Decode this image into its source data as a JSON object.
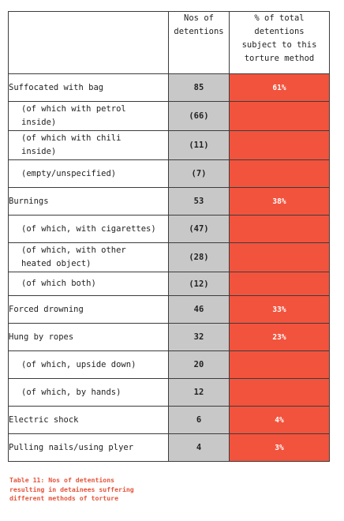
{
  "table": {
    "headers": {
      "method": "",
      "count": [
        "Nos of",
        "detentions"
      ],
      "percent": [
        "% of total",
        "detentions",
        "subject to this",
        "torture method"
      ]
    },
    "rows": [
      {
        "method": [
          "Suffocated with bag"
        ],
        "count": "85",
        "percent": "61%",
        "sub": false
      },
      {
        "method": [
          "(of which with petrol",
          "inside)"
        ],
        "count": "(66)",
        "percent": "",
        "sub": true
      },
      {
        "method": [
          "(of which with chili",
          "inside)"
        ],
        "count": "(11)",
        "percent": "",
        "sub": true
      },
      {
        "method": [
          "(empty/unspecified)"
        ],
        "count": "(7)",
        "percent": "",
        "sub": true
      },
      {
        "method": [
          "Burnings"
        ],
        "count": "53",
        "percent": "38%",
        "sub": false
      },
      {
        "method": [
          "(of which, with cigarettes)"
        ],
        "count": "(47)",
        "percent": "",
        "sub": true
      },
      {
        "method": [
          "(of which, with other",
          "heated object)"
        ],
        "count": "(28)",
        "percent": "",
        "sub": true
      },
      {
        "method": [
          "(of which both)"
        ],
        "count": "(12)",
        "percent": "",
        "sub": true
      },
      {
        "method": [
          "Forced drowning"
        ],
        "count": "46",
        "percent": "33%",
        "sub": false
      },
      {
        "method": [
          "Hung by ropes"
        ],
        "count": "32",
        "percent": "23%",
        "sub": false
      },
      {
        "method": [
          "(of which, upside down)"
        ],
        "count": "20",
        "percent": "",
        "sub": true
      },
      {
        "method": [
          "(of which, by hands)"
        ],
        "count": "12",
        "percent": "",
        "sub": true
      },
      {
        "method": [
          "Electric shock"
        ],
        "count": "6",
        "percent": "4%",
        "sub": false
      },
      {
        "method": [
          "Pulling nails/using plyer"
        ],
        "count": "4",
        "percent": "3%",
        "sub": false
      }
    ]
  },
  "caption": {
    "lines": [
      "Table 11: Nos of detentions",
      "resulting in detainees suffering",
      "different methods of torture"
    ]
  },
  "colors": {
    "count_fill": "#c8c8c8",
    "percent_fill": "#f2533d",
    "caption_text": "#e4553c"
  }
}
